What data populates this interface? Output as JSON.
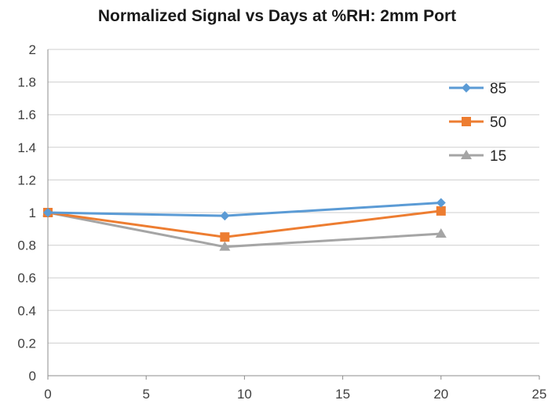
{
  "chart_data": {
    "type": "line",
    "title": "Normalized Signal vs Days at %RH: 2mm Port",
    "xlabel": "",
    "ylabel": "",
    "xlim": [
      0,
      25
    ],
    "ylim": [
      0,
      2
    ],
    "x_ticks": [
      0,
      5,
      10,
      15,
      20,
      25
    ],
    "y_ticks": [
      0,
      0.2,
      0.4,
      0.6,
      0.8,
      1,
      1.2,
      1.4,
      1.6,
      1.8,
      2
    ],
    "grid": "horizontal",
    "legend_position": "right",
    "series": [
      {
        "name": "85",
        "color": "#5b9bd5",
        "marker": "diamond",
        "x": [
          0,
          9,
          20
        ],
        "y": [
          1.0,
          0.98,
          1.06
        ]
      },
      {
        "name": "50",
        "color": "#ed7d31",
        "marker": "square",
        "x": [
          0,
          9,
          20
        ],
        "y": [
          1.0,
          0.85,
          1.01
        ]
      },
      {
        "name": "15",
        "color": "#a5a5a5",
        "marker": "triangle",
        "x": [
          0,
          9,
          20
        ],
        "y": [
          1.0,
          0.79,
          0.87
        ]
      }
    ]
  }
}
